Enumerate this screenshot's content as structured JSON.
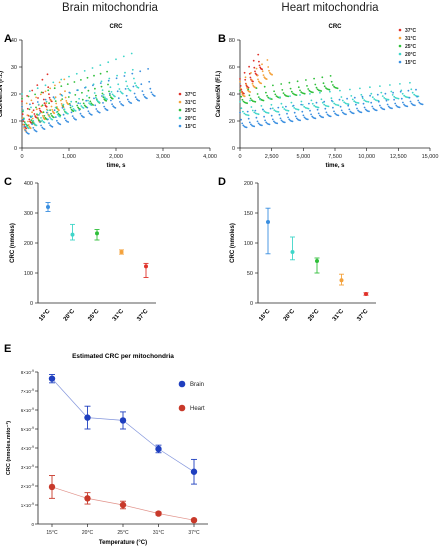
{
  "panel_titles": {
    "brain": "Brain mitochondria",
    "heart": "Heart mitochondria"
  },
  "panel_letters": {
    "a": "A",
    "b": "B",
    "c": "C",
    "d": "D",
    "e": "E"
  },
  "colors": {
    "37C": "#e0322a",
    "31C": "#f4a23c",
    "25C": "#2fbf3a",
    "20C": "#3fd6c9",
    "15C": "#3a8fe0",
    "brain": "#1f3fbf",
    "heart": "#c8392a"
  },
  "chart_data": [
    {
      "id": "A",
      "type": "scatter",
      "title": "CRC",
      "xlabel": "time, s",
      "ylabel": "CaGreen5N (F.I.)",
      "xlim": [
        0,
        4000
      ],
      "ylim": [
        0,
        40
      ],
      "xticks": [
        "0",
        "1,000",
        "2,000",
        "3,000",
        "4,000"
      ],
      "yticks": [
        "0",
        "10",
        "20",
        "30",
        "40"
      ],
      "legend_position": "right",
      "series": [
        {
          "name": "37°C",
          "color_key": "37C",
          "x_end": 650,
          "n_pulses": 6,
          "base_start": 7,
          "base_end": 17,
          "peak": 24
        },
        {
          "name": "31°C",
          "color_key": "31C",
          "x_end": 1000,
          "n_pulses": 10,
          "base_start": 6,
          "base_end": 16,
          "peak": 22
        },
        {
          "name": "25°C",
          "color_key": "25C",
          "x_end": 1950,
          "n_pulses": 14,
          "base_start": 8,
          "base_end": 18,
          "peak": 25
        },
        {
          "name": "20°C",
          "color_key": "20C",
          "x_end": 2500,
          "n_pulses": 15,
          "base_start": 7,
          "base_end": 22,
          "peak": 32
        },
        {
          "name": "15°C",
          "color_key": "15C",
          "x_end": 2850,
          "n_pulses": 17,
          "base_start": 5,
          "base_end": 19,
          "peak": 26
        }
      ]
    },
    {
      "id": "B",
      "type": "scatter",
      "title": "CRC",
      "xlabel": "time, s",
      "ylabel": "CaGreen5N (F.I.)",
      "xlim": [
        0,
        15000
      ],
      "ylim": [
        0,
        80
      ],
      "xticks": [
        "0",
        "2,500",
        "5,000",
        "7,500",
        "10,000",
        "12,500",
        "15,000"
      ],
      "yticks": [
        "0",
        "20",
        "40",
        "60",
        "80"
      ],
      "legend_position": "right",
      "series": [
        {
          "name": "37°C",
          "color_key": "37C",
          "x_end": 1800,
          "n_pulses": 5,
          "base_start": 40,
          "base_end": 58,
          "peak": 66
        },
        {
          "name": "31°C",
          "color_key": "31C",
          "x_end": 2600,
          "n_pulses": 6,
          "base_start": 38,
          "base_end": 54,
          "peak": 62
        },
        {
          "name": "25°C",
          "color_key": "25C",
          "x_end": 7800,
          "n_pulses": 12,
          "base_start": 33,
          "base_end": 44,
          "peak": 50
        },
        {
          "name": "20°C",
          "color_key": "20C",
          "x_end": 14200,
          "n_pulses": 18,
          "base_start": 24,
          "base_end": 38,
          "peak": 45
        },
        {
          "name": "15°C",
          "color_key": "15C",
          "x_end": 14500,
          "n_pulses": 24,
          "base_start": 15,
          "base_end": 32,
          "peak": 40
        }
      ]
    },
    {
      "id": "C",
      "type": "scatter",
      "ylabel": "CRC (nmoles)",
      "ylim": [
        0,
        400
      ],
      "yticks": [
        "0",
        "100",
        "200",
        "300",
        "400"
      ],
      "categories": [
        "15°C",
        "20°C",
        "25°C",
        "31°C",
        "37°C"
      ],
      "color_keys": [
        "15C",
        "20C",
        "25C",
        "31C",
        "37C"
      ],
      "values": [
        320,
        228,
        232,
        170,
        122
      ],
      "err_low": [
        305,
        210,
        210,
        163,
        85
      ],
      "err_high": [
        335,
        262,
        245,
        177,
        132
      ]
    },
    {
      "id": "D",
      "type": "scatter",
      "ylabel": "CRC (nmoles)",
      "ylim": [
        0,
        200
      ],
      "yticks": [
        "0",
        "50",
        "100",
        "150",
        "200"
      ],
      "categories": [
        "15°C",
        "20°C",
        "25°C",
        "31°C",
        "37°C"
      ],
      "color_keys": [
        "15C",
        "20C",
        "25C",
        "31C",
        "37C"
      ],
      "values": [
        135,
        85,
        70,
        38,
        15
      ],
      "err_low": [
        82,
        72,
        50,
        30,
        13
      ],
      "err_high": [
        158,
        110,
        75,
        48,
        17
      ]
    },
    {
      "id": "E",
      "type": "line",
      "title": "Estimated CRC per mitochondria",
      "xlabel": "Temperature (°C)",
      "ylabel": "CRC (nmoles.mito⁻¹)",
      "ylim": [
        0,
        8
      ],
      "ytick_values": [
        0,
        1,
        2,
        3,
        4,
        5,
        6,
        7,
        8
      ],
      "ytick_base": "×10",
      "ytick_exp": "-9",
      "categories": [
        "15°C",
        "20°C",
        "25°C",
        "31°C",
        "37°C"
      ],
      "legend_position": "top-right",
      "series": [
        {
          "name": "Brain",
          "color_key": "brain",
          "values": [
            7.65,
            5.6,
            5.45,
            3.95,
            2.75
          ],
          "err": [
            0.22,
            0.6,
            0.45,
            0.2,
            0.65
          ]
        },
        {
          "name": "Heart",
          "color_key": "heart",
          "values": [
            1.95,
            1.35,
            1.0,
            0.55,
            0.2
          ],
          "err": [
            0.6,
            0.3,
            0.2,
            0.08,
            0.05
          ]
        }
      ]
    }
  ]
}
